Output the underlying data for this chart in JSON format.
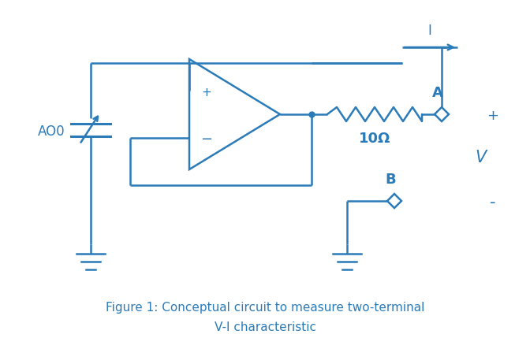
{
  "color": "#2b7bb9",
  "bg_color": "#ffffff",
  "caption_line1": "Figure 1: Conceptual circuit to measure two-terminal",
  "caption_line2": "V-I characteristic",
  "label_ao0": "AO0",
  "label_10ohm": "10Ω",
  "label_A": "A",
  "label_B": "B",
  "label_I": "I",
  "label_plus": "+",
  "label_minus": "-",
  "label_V": "V",
  "label_opamp_plus": "+",
  "label_opamp_minus": "−"
}
